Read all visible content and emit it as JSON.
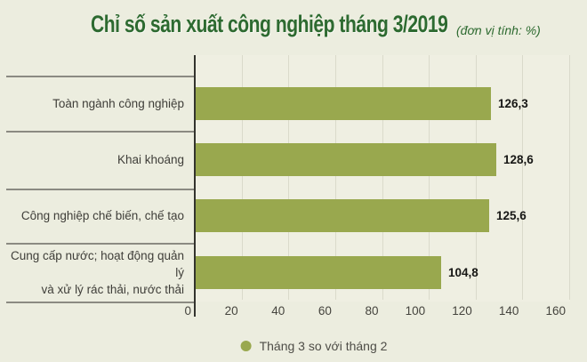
{
  "header": {
    "title": "Chỉ số sản xuất công nghiệp tháng 3/2019",
    "unit_note": "(đơn vị tính: %)"
  },
  "legend": {
    "label": "Tháng 3 so với tháng 2"
  },
  "chart_data": {
    "type": "bar",
    "orientation": "horizontal",
    "title": "Chỉ số sản xuất công nghiệp tháng 3/2019",
    "unit_note": "(đơn vị tính: %)",
    "categories": [
      "Toàn ngành công nghiệp",
      "Khai khoáng",
      "Công nghiệp chế biến, chế tạo",
      "Cung cấp nước; hoạt động quản lý và xử lý rác thải, nước thải"
    ],
    "category_lines": [
      [
        "Toàn ngành công nghiệp"
      ],
      [
        "Khai khoáng"
      ],
      [
        "Công nghiệp chế biến, chế tạo"
      ],
      [
        "Cung cấp nước; hoạt động quản lý",
        "và xử lý rác thải, nước thải"
      ]
    ],
    "values": [
      126.3,
      128.6,
      125.6,
      104.8
    ],
    "value_labels": [
      "126,3",
      "128,6",
      "125,6",
      "104,8"
    ],
    "x_ticks": [
      0,
      20,
      40,
      60,
      80,
      100,
      120,
      140,
      160
    ],
    "xlim": [
      0,
      160
    ],
    "grid": true,
    "legend_position": "bottom",
    "legend_entries": [
      "Tháng 3 so với tháng 2"
    ]
  },
  "colors": {
    "background": "#ECEDDF",
    "plot_background": "#EFEFE2",
    "bar": "#99A84E",
    "title_green": "#2D6A30",
    "gridline": "#DADACB",
    "axis_line": "#33332E",
    "row_separator": "#8B8A82",
    "category_text": "#3F3E39",
    "value_text": "#171715",
    "tick_text": "#45443E",
    "legend_text": "#4E4D47"
  }
}
